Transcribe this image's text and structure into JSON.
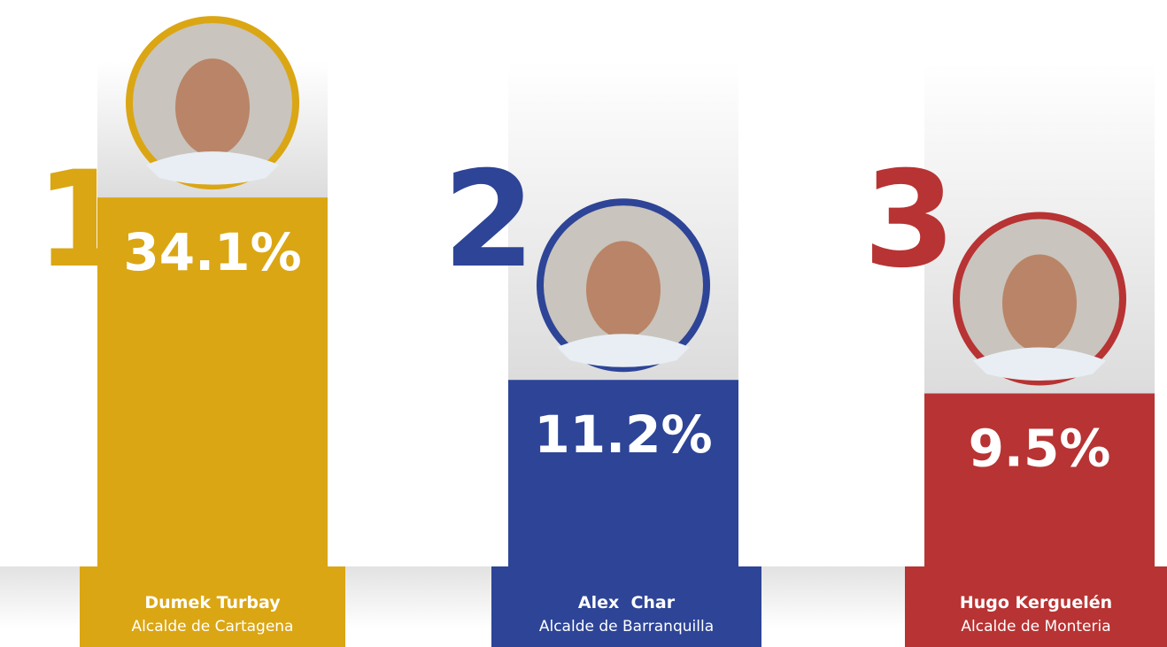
{
  "chart_data": {
    "type": "bar",
    "ranks": [
      "1",
      "2",
      "3"
    ],
    "categories": [
      "Dumek Turbay",
      "Alex  Char",
      "Hugo Kerguelén"
    ],
    "roles": [
      "Alcalde de Cartagena",
      "Alcalde de Barranquilla",
      "Alcalde de Monteria"
    ],
    "values": [
      34.1,
      11.2,
      9.5
    ],
    "value_labels": [
      "34.1%",
      "11.2%",
      "9.5%"
    ],
    "colors": [
      "#dba614",
      "#2d4497",
      "#b83333"
    ]
  }
}
